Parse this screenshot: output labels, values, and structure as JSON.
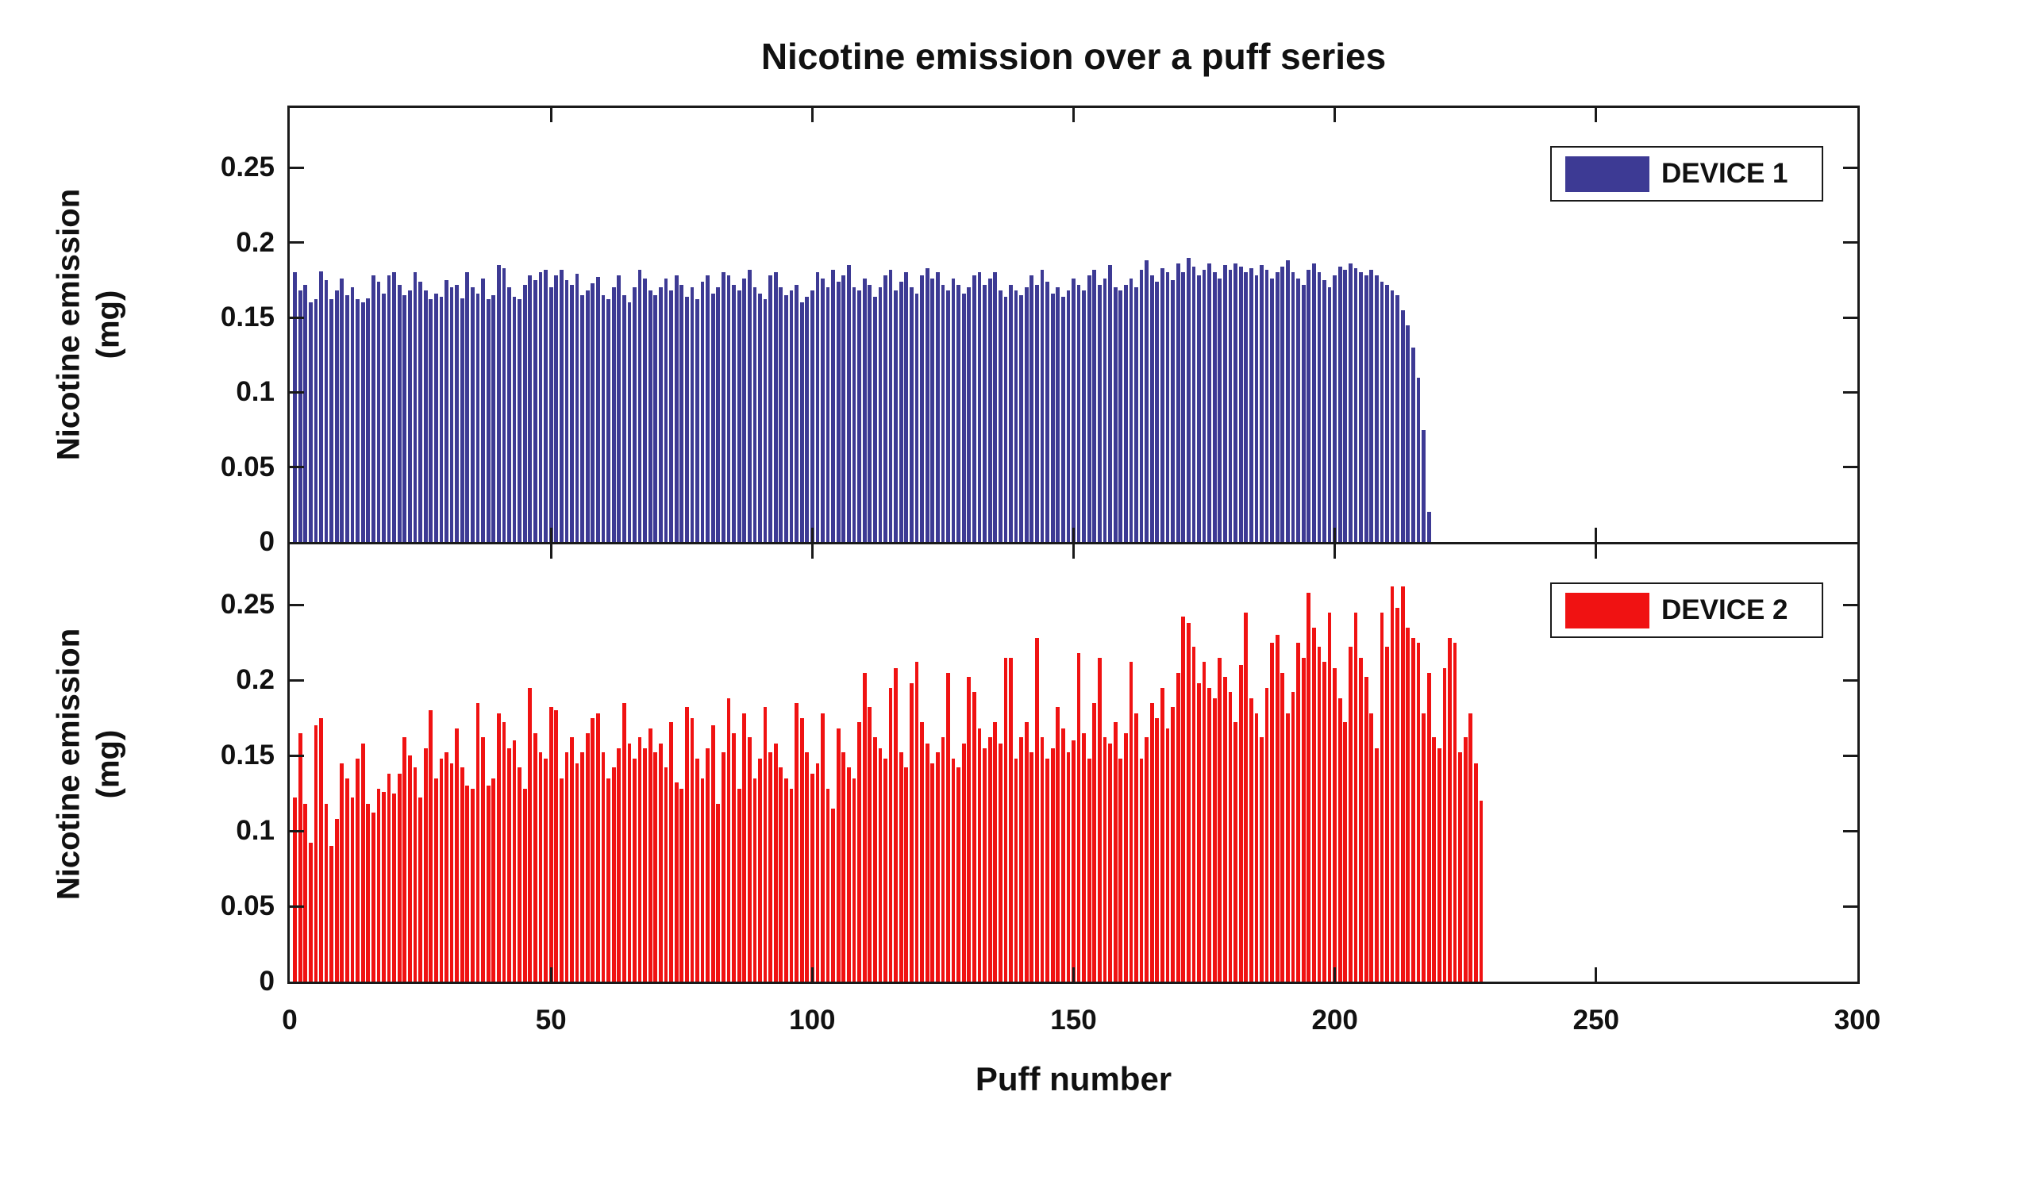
{
  "figure": {
    "title": "Nicotine emission over a puff series",
    "xlabel": "Puff number",
    "ylabel_line1": "Nicotine emission",
    "ylabel_line2": "(mg)",
    "background_color": "#FFFFFF",
    "axis_color": "#1A1A1A",
    "text_color": "#111111"
  },
  "axes": {
    "xlim": [
      0,
      300
    ],
    "ylim": [
      0,
      0.29
    ],
    "xticks": [
      0,
      50,
      100,
      150,
      200,
      250,
      300
    ],
    "xtick_labels": [
      "0",
      "50",
      "100",
      "150",
      "200",
      "250",
      "300"
    ],
    "yticks": [
      0,
      0.05,
      0.1,
      0.15,
      0.2,
      0.25
    ],
    "ytick_labels": [
      "0",
      "0.05",
      "0.1",
      "0.15",
      "0.2",
      "0.25"
    ],
    "grid": false,
    "box": true,
    "tick_direction": "in"
  },
  "chart_data": [
    {
      "type": "bar",
      "name": "DEVICE 1",
      "legend_label": "DEVICE 1",
      "legend_position": "top-right",
      "color": "#3D3A94",
      "x_start": 1,
      "xlim": [
        0,
        300
      ],
      "ylim": [
        0,
        0.29
      ],
      "values": [
        0.18,
        0.168,
        0.172,
        0.16,
        0.162,
        0.181,
        0.175,
        0.162,
        0.168,
        0.176,
        0.165,
        0.17,
        0.162,
        0.16,
        0.163,
        0.178,
        0.174,
        0.166,
        0.178,
        0.18,
        0.172,
        0.165,
        0.168,
        0.18,
        0.174,
        0.168,
        0.162,
        0.166,
        0.164,
        0.175,
        0.17,
        0.172,
        0.163,
        0.18,
        0.17,
        0.166,
        0.176,
        0.162,
        0.165,
        0.185,
        0.183,
        0.17,
        0.164,
        0.162,
        0.172,
        0.178,
        0.175,
        0.18,
        0.182,
        0.17,
        0.178,
        0.182,
        0.175,
        0.172,
        0.179,
        0.165,
        0.168,
        0.173,
        0.177,
        0.165,
        0.162,
        0.17,
        0.178,
        0.165,
        0.16,
        0.17,
        0.182,
        0.176,
        0.168,
        0.165,
        0.17,
        0.176,
        0.168,
        0.178,
        0.172,
        0.164,
        0.17,
        0.162,
        0.174,
        0.178,
        0.166,
        0.17,
        0.18,
        0.178,
        0.172,
        0.168,
        0.176,
        0.182,
        0.17,
        0.166,
        0.162,
        0.178,
        0.18,
        0.17,
        0.165,
        0.168,
        0.172,
        0.16,
        0.164,
        0.168,
        0.18,
        0.176,
        0.17,
        0.182,
        0.174,
        0.178,
        0.185,
        0.17,
        0.168,
        0.176,
        0.172,
        0.164,
        0.17,
        0.178,
        0.182,
        0.168,
        0.174,
        0.18,
        0.17,
        0.166,
        0.178,
        0.183,
        0.176,
        0.18,
        0.172,
        0.168,
        0.176,
        0.172,
        0.166,
        0.17,
        0.178,
        0.18,
        0.172,
        0.176,
        0.18,
        0.168,
        0.164,
        0.172,
        0.168,
        0.165,
        0.17,
        0.178,
        0.172,
        0.182,
        0.174,
        0.166,
        0.17,
        0.164,
        0.168,
        0.176,
        0.172,
        0.168,
        0.178,
        0.182,
        0.172,
        0.176,
        0.185,
        0.17,
        0.168,
        0.172,
        0.176,
        0.17,
        0.182,
        0.188,
        0.178,
        0.174,
        0.183,
        0.18,
        0.175,
        0.186,
        0.18,
        0.19,
        0.184,
        0.178,
        0.182,
        0.186,
        0.18,
        0.176,
        0.185,
        0.182,
        0.186,
        0.184,
        0.18,
        0.183,
        0.178,
        0.185,
        0.182,
        0.176,
        0.18,
        0.184,
        0.188,
        0.18,
        0.176,
        0.172,
        0.182,
        0.186,
        0.18,
        0.175,
        0.17,
        0.178,
        0.184,
        0.182,
        0.186,
        0.183,
        0.18,
        0.178,
        0.182,
        0.178,
        0.174,
        0.172,
        0.168,
        0.165,
        0.155,
        0.145,
        0.13,
        0.11,
        0.075,
        0.02
      ]
    },
    {
      "type": "bar",
      "name": "DEVICE 2",
      "legend_label": "DEVICE 2",
      "legend_position": "top-right",
      "color": "#F01212",
      "x_start": 1,
      "xlim": [
        0,
        300
      ],
      "ylim": [
        0,
        0.29
      ],
      "values": [
        0.122,
        0.165,
        0.118,
        0.092,
        0.17,
        0.175,
        0.118,
        0.09,
        0.108,
        0.145,
        0.135,
        0.122,
        0.148,
        0.158,
        0.118,
        0.112,
        0.128,
        0.126,
        0.138,
        0.125,
        0.138,
        0.162,
        0.15,
        0.142,
        0.122,
        0.155,
        0.18,
        0.135,
        0.148,
        0.152,
        0.145,
        0.168,
        0.142,
        0.13,
        0.128,
        0.185,
        0.162,
        0.13,
        0.135,
        0.178,
        0.172,
        0.155,
        0.16,
        0.142,
        0.128,
        0.195,
        0.165,
        0.152,
        0.148,
        0.182,
        0.18,
        0.135,
        0.152,
        0.162,
        0.145,
        0.152,
        0.165,
        0.175,
        0.178,
        0.152,
        0.135,
        0.142,
        0.155,
        0.185,
        0.158,
        0.148,
        0.162,
        0.155,
        0.168,
        0.152,
        0.158,
        0.142,
        0.172,
        0.132,
        0.128,
        0.182,
        0.175,
        0.148,
        0.135,
        0.155,
        0.17,
        0.118,
        0.152,
        0.188,
        0.165,
        0.128,
        0.178,
        0.162,
        0.135,
        0.148,
        0.182,
        0.152,
        0.158,
        0.142,
        0.135,
        0.128,
        0.185,
        0.175,
        0.152,
        0.138,
        0.145,
        0.178,
        0.128,
        0.115,
        0.168,
        0.152,
        0.142,
        0.135,
        0.172,
        0.205,
        0.182,
        0.162,
        0.155,
        0.148,
        0.195,
        0.208,
        0.152,
        0.142,
        0.198,
        0.212,
        0.172,
        0.158,
        0.145,
        0.152,
        0.162,
        0.205,
        0.148,
        0.142,
        0.158,
        0.202,
        0.192,
        0.168,
        0.155,
        0.162,
        0.172,
        0.158,
        0.215,
        0.215,
        0.148,
        0.162,
        0.172,
        0.152,
        0.228,
        0.162,
        0.148,
        0.155,
        0.182,
        0.168,
        0.152,
        0.16,
        0.218,
        0.165,
        0.148,
        0.185,
        0.215,
        0.162,
        0.158,
        0.172,
        0.148,
        0.165,
        0.212,
        0.178,
        0.148,
        0.162,
        0.185,
        0.175,
        0.195,
        0.168,
        0.182,
        0.205,
        0.242,
        0.238,
        0.222,
        0.198,
        0.212,
        0.195,
        0.188,
        0.215,
        0.202,
        0.192,
        0.172,
        0.21,
        0.245,
        0.188,
        0.178,
        0.162,
        0.195,
        0.225,
        0.23,
        0.205,
        0.178,
        0.192,
        0.225,
        0.215,
        0.258,
        0.235,
        0.222,
        0.212,
        0.245,
        0.208,
        0.188,
        0.172,
        0.222,
        0.245,
        0.215,
        0.202,
        0.178,
        0.155,
        0.245,
        0.222,
        0.262,
        0.248,
        0.262,
        0.235,
        0.228,
        0.225,
        0.178,
        0.205,
        0.162,
        0.155,
        0.208,
        0.228,
        0.225,
        0.152,
        0.162,
        0.178,
        0.145,
        0.12
      ]
    }
  ]
}
